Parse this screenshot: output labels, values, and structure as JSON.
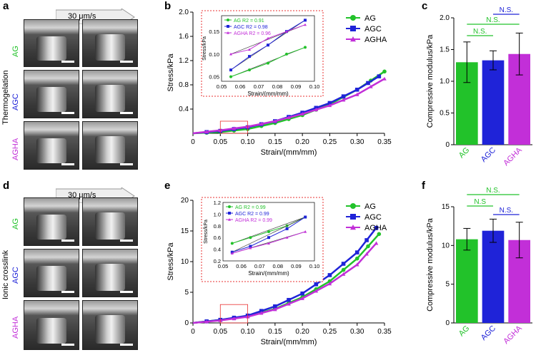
{
  "colors": {
    "AG": "#22c22a",
    "AGC": "#1f23d8",
    "AGHA": "#c22fd8",
    "inset": "#e83030",
    "line": "#000000"
  },
  "panels": {
    "a": "a",
    "b": "b",
    "c": "c",
    "d": "d",
    "e": "e",
    "f": "f"
  },
  "rows": {
    "top": "Thermogelation",
    "bottom": "Ionic crosslink"
  },
  "samples": [
    "AG",
    "AGC",
    "AGHA"
  ],
  "arrow_label": "30 μm/s",
  "chart_data": [
    {
      "id": "b",
      "type": "line",
      "ylabel": "Stress/kPa",
      "xlabel": "Strain/(mm/mm)",
      "xlim": [
        0,
        0.35
      ],
      "ylim": [
        0,
        2.0
      ],
      "xticks": [
        "0",
        "0.05",
        "0.10",
        "0.15",
        "0.20",
        "0.25",
        "0.30",
        "0.35"
      ],
      "yticks": [
        "0.4",
        "0.8",
        "1.2",
        "1.6",
        "2.0"
      ],
      "legend": [
        "AG",
        "AGC",
        "AGHA"
      ],
      "series": [
        {
          "name": "AG",
          "x": [
            0,
            0.05,
            0.1,
            0.15,
            0.2,
            0.25,
            0.3,
            0.35
          ],
          "y": [
            0,
            0.02,
            0.07,
            0.17,
            0.3,
            0.48,
            0.72,
            1.02
          ]
        },
        {
          "name": "AGC",
          "x": [
            0,
            0.05,
            0.1,
            0.15,
            0.2,
            0.25,
            0.3,
            0.34
          ],
          "y": [
            0,
            0.04,
            0.1,
            0.2,
            0.34,
            0.5,
            0.72,
            0.94
          ]
        },
        {
          "name": "AGHA",
          "x": [
            0,
            0.05,
            0.1,
            0.15,
            0.2,
            0.25,
            0.3,
            0.35
          ],
          "y": [
            0,
            0.05,
            0.11,
            0.2,
            0.32,
            0.46,
            0.64,
            0.9
          ]
        }
      ],
      "inset": {
        "xlabel": "Strain/(mm/mm)",
        "ylabel": "Stress/kPa",
        "xticks": [
          "0.05",
          "0.06",
          "0.07",
          "0.08",
          "0.09",
          "0.10"
        ],
        "yticks": [
          "0.05",
          "0.10",
          "0.15"
        ],
        "xlim": [
          0.05,
          0.1
        ],
        "ylim": [
          0.04,
          0.185
        ],
        "legend": [
          "AG R2 = 0.91",
          "AGC R2 = 0.98",
          "AGHA R2 = 0.96"
        ],
        "series": [
          {
            "name": "AG",
            "x": [
              0.055,
              0.065,
              0.075,
              0.085,
              0.095
            ],
            "y": [
              0.05,
              0.065,
              0.08,
              0.1,
              0.115
            ]
          },
          {
            "name": "AGC",
            "x": [
              0.055,
              0.065,
              0.075,
              0.085,
              0.095
            ],
            "y": [
              0.065,
              0.095,
              0.12,
              0.15,
              0.175
            ]
          },
          {
            "name": "AGHA",
            "x": [
              0.055,
              0.065,
              0.075,
              0.085,
              0.095
            ],
            "y": [
              0.1,
              0.11,
              0.135,
              0.15,
              0.165
            ]
          }
        ]
      }
    },
    {
      "id": "c",
      "type": "bar",
      "ylabel": "Compressive modulus/kPa",
      "ylim": [
        0,
        2.0
      ],
      "yticks": [
        "0",
        "0.5",
        "1.0",
        "1.5",
        "2.0"
      ],
      "categories": [
        "AG",
        "AGC",
        "AGHA"
      ],
      "values": [
        1.3,
        1.33,
        1.43
      ],
      "errors": [
        0.32,
        0.15,
        0.33
      ],
      "annotations": [
        "N.S.",
        "N.S.",
        "N.S."
      ]
    },
    {
      "id": "e",
      "type": "line",
      "ylabel": "Stress/kPa",
      "xlabel": "Strain/(mm/mm)",
      "xlim": [
        0,
        0.35
      ],
      "ylim": [
        0,
        20
      ],
      "xticks": [
        "0",
        "0.05",
        "0.10",
        "0.15",
        "0.20",
        "0.25",
        "0.30",
        "0.35"
      ],
      "yticks": [
        "0",
        "5",
        "10",
        "15",
        "20"
      ],
      "legend": [
        "AG",
        "AGC",
        "AGHA"
      ],
      "series": [
        {
          "name": "AG",
          "x": [
            0,
            0.05,
            0.1,
            0.15,
            0.2,
            0.25,
            0.3,
            0.34
          ],
          "y": [
            0,
            0.5,
            1.1,
            2.3,
            4.2,
            6.8,
            10.5,
            14.5
          ]
        },
        {
          "name": "AGC",
          "x": [
            0,
            0.05,
            0.1,
            0.15,
            0.2,
            0.25,
            0.3,
            0.335
          ],
          "y": [
            0,
            0.5,
            1.2,
            2.7,
            4.8,
            7.8,
            11.5,
            15.5
          ]
        },
        {
          "name": "AGHA",
          "x": [
            0,
            0.05,
            0.1,
            0.15,
            0.2,
            0.25,
            0.3,
            0.335
          ],
          "y": [
            0,
            0.4,
            1.0,
            2.2,
            4.0,
            6.4,
            9.5,
            13.0
          ]
        }
      ],
      "inset": {
        "xlabel": "Strain/(mm/mm)",
        "ylabel": "Stress/kPa",
        "xticks": [
          "0.05",
          "0.06",
          "0.07",
          "0.08",
          "0.09",
          "0.10"
        ],
        "yticks": [
          "0.2",
          "0.4",
          "0.6",
          "0.8",
          "1.0",
          "1.2"
        ],
        "xlim": [
          0.05,
          0.1
        ],
        "ylim": [
          0.2,
          1.2
        ],
        "legend": [
          "AG R2 = 0.99",
          "AGC R2 = 0.99",
          "AGHA R2 = 0.99"
        ],
        "series": [
          {
            "name": "AG",
            "x": [
              0.055,
              0.065,
              0.075,
              0.085,
              0.095
            ],
            "y": [
              0.5,
              0.6,
              0.7,
              0.8,
              0.95
            ]
          },
          {
            "name": "AGC",
            "x": [
              0.055,
              0.065,
              0.075,
              0.085,
              0.095
            ],
            "y": [
              0.35,
              0.45,
              0.6,
              0.75,
              0.95
            ]
          },
          {
            "name": "AGHA",
            "x": [
              0.055,
              0.065,
              0.075,
              0.085,
              0.095
            ],
            "y": [
              0.33,
              0.42,
              0.5,
              0.6,
              0.7
            ]
          }
        ]
      }
    },
    {
      "id": "f",
      "type": "bar",
      "ylabel": "Compressive modulus/kPa",
      "ylim": [
        0,
        15
      ],
      "yticks": [
        "0",
        "5",
        "10",
        "15"
      ],
      "categories": [
        "AG",
        "AGC",
        "AGHA"
      ],
      "values": [
        10.8,
        11.9,
        10.7
      ],
      "errors": [
        1.4,
        1.5,
        2.3
      ],
      "annotations": [
        "N.S",
        "N.S.",
        "N.S."
      ]
    }
  ]
}
